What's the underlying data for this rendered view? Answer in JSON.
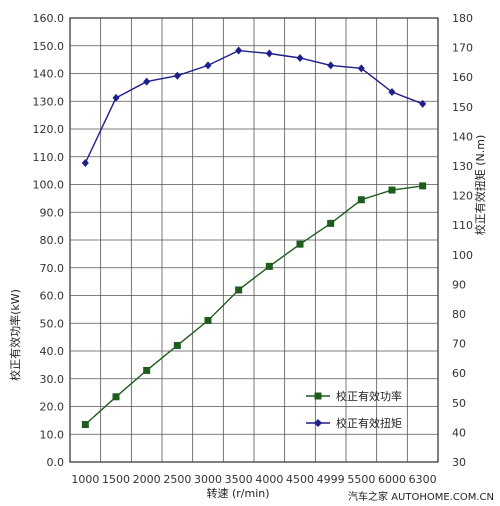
{
  "chart_data": {
    "type": "line",
    "categories": [
      "1000",
      "1500",
      "2000",
      "2500",
      "3000",
      "3500",
      "4000",
      "4500",
      "4999",
      "5500",
      "6000",
      "6300"
    ],
    "xlabel": "转速 (r/min)",
    "ylabel_left": "校正有效功率(kW)",
    "ylabel_right": "校正有效扭矩 (N.m)",
    "ylim_left": [
      0,
      160
    ],
    "ylim_right": [
      30,
      180
    ],
    "yticks_left": [
      "0.0",
      "10.0",
      "20.0",
      "30.0",
      "40.0",
      "50.0",
      "60.0",
      "70.0",
      "80.0",
      "90.0",
      "100.0",
      "110.0",
      "120.0",
      "130.0",
      "140.0",
      "150.0",
      "160.0"
    ],
    "yticks_right": [
      "30",
      "40",
      "50",
      "60",
      "70",
      "80",
      "90",
      "100",
      "110",
      "120",
      "130",
      "140",
      "150",
      "160",
      "170",
      "180"
    ],
    "grid": true,
    "legend_position": "bottom-right",
    "series": [
      {
        "name": "校正有效功率",
        "axis": "left",
        "color": "#1e5c1e",
        "marker": "square",
        "values": [
          13.5,
          23.5,
          33.0,
          42.0,
          51.0,
          62.0,
          70.5,
          78.5,
          86.0,
          94.5,
          98.0,
          99.5
        ]
      },
      {
        "name": "校正有效扭矩",
        "axis": "right",
        "color": "#1e1e8c",
        "marker": "diamond",
        "values": [
          131,
          153,
          158.5,
          160.5,
          164,
          169,
          168,
          166.5,
          164,
          163,
          155,
          151
        ]
      }
    ]
  },
  "watermark": "汽车之家 AUTOHOME.COM.CN"
}
